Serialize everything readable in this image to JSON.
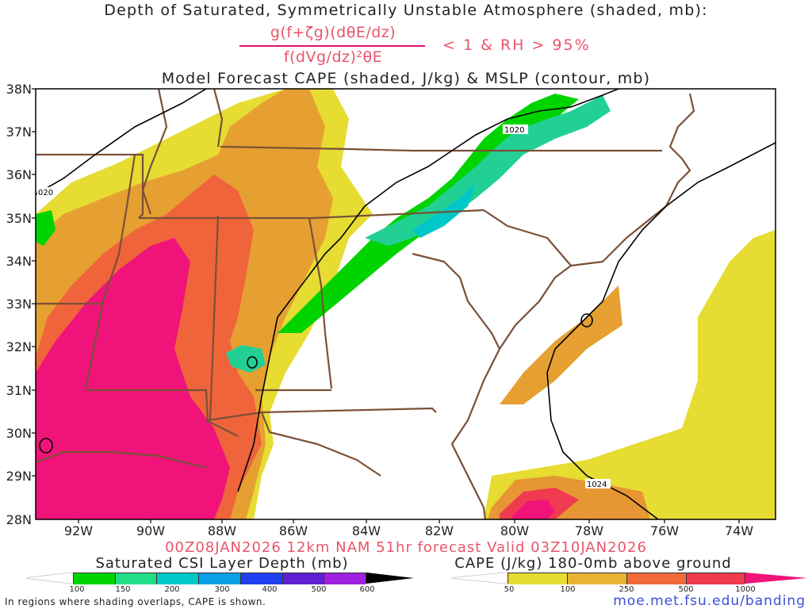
{
  "header": {
    "title_line1": "Depth of Saturated, Symmetrically Unstable Atmosphere (shaded, mb):",
    "fraction_numerator": "g(f+ζg)(dθE/dz)",
    "fraction_denominator": "f(dVg/dz)²θE",
    "condition": "< 1 & RH > 95%",
    "title_line2": "Model Forecast CAPE (shaded, J/kg) & MSLP (contour, mb)"
  },
  "map": {
    "lat_labels": [
      "38N",
      "37N",
      "36N",
      "35N",
      "34N",
      "33N",
      "32N",
      "31N",
      "30N",
      "29N",
      "28N"
    ],
    "lon_labels": [
      "92W",
      "90W",
      "88W",
      "86W",
      "84W",
      "82W",
      "80W",
      "78W",
      "76W",
      "74W"
    ],
    "isobar_labels": [
      "020",
      "1020",
      "1024"
    ],
    "colors": {
      "state_lines": "#7a5038",
      "isobars": "#000000",
      "frame": "#000000"
    }
  },
  "forecast_line": "00Z08JAN2026 12km NAM 51hr forecast Valid 03Z10JAN2026",
  "csi_colorbar": {
    "title": "Saturated CSI Layer Depth (mb)",
    "ticks": [
      "100",
      "150",
      "200",
      "300",
      "400",
      "500",
      "600"
    ],
    "colors": [
      "#00d400",
      "#22dd88",
      "#00c8c8",
      "#0aa0e8",
      "#2040f0",
      "#6020d0",
      "#a020e0",
      "#000000"
    ]
  },
  "cape_colorbar": {
    "title": "CAPE (J/kg) 180-0mb above ground",
    "ticks": [
      "50",
      "100",
      "250",
      "500",
      "1000"
    ],
    "colors": [
      "#e6dc32",
      "#e6b432",
      "#e69632",
      "#f06a3a",
      "#f03a50",
      "#f0147a"
    ]
  },
  "footnote": "In regions where shading overlaps, CAPE is shown.",
  "website": "moe.met.fsu.edu/banding"
}
